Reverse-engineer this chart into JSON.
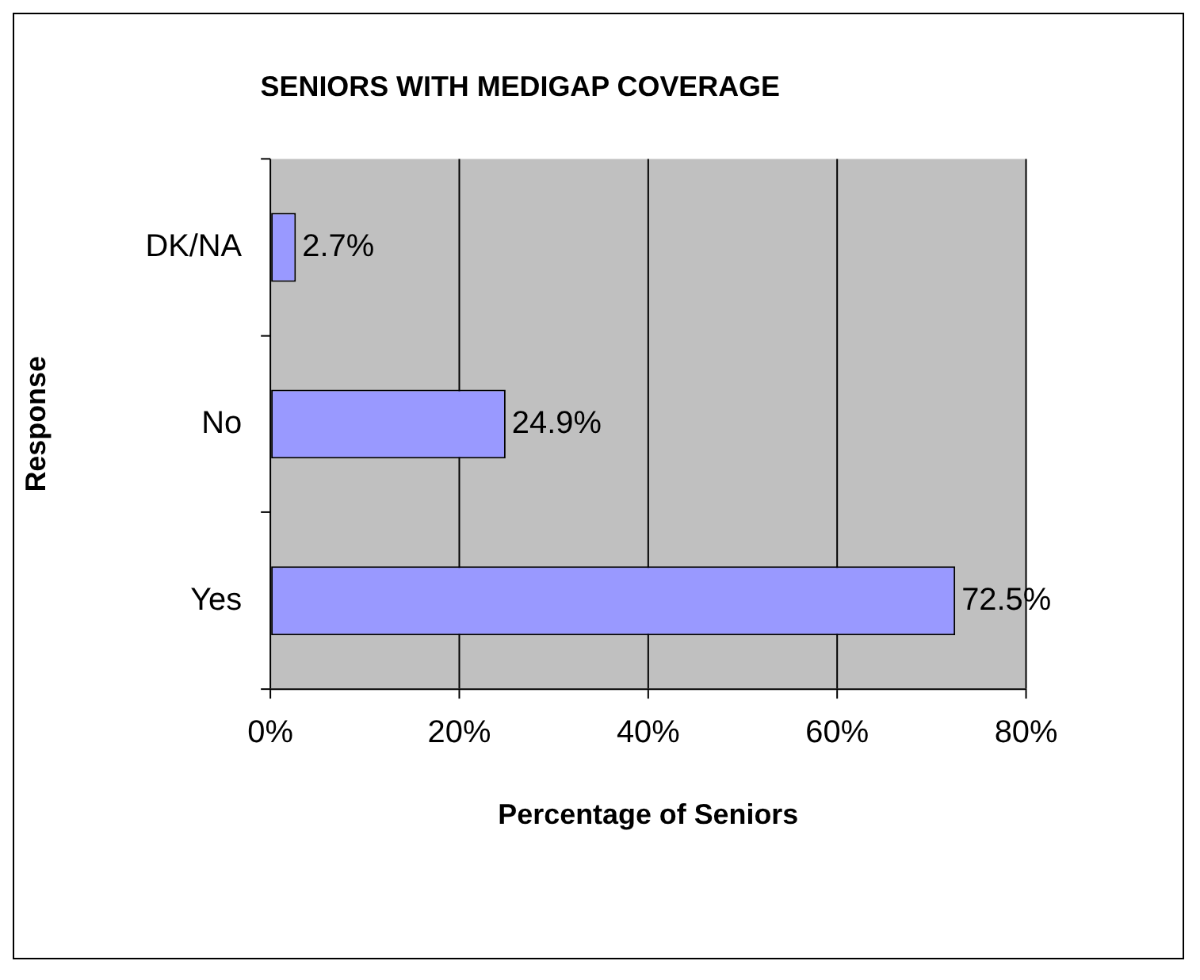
{
  "chart_data": {
    "type": "bar",
    "orientation": "horizontal",
    "title": "SENIORS WITH MEDIGAP COVERAGE",
    "xlabel": "Percentage of Seniors",
    "ylabel": "Response",
    "categories": [
      "DK/NA",
      "No",
      "Yes"
    ],
    "values": [
      2.7,
      24.9,
      72.5
    ],
    "color": "#9999ff",
    "value_labels": [
      "2.7%",
      "24.9%",
      "72.5%"
    ],
    "xlim": [
      0,
      80
    ],
    "xticks": [
      {
        "value": 0,
        "label": "0%"
      },
      {
        "value": 20,
        "label": "20%"
      },
      {
        "value": 40,
        "label": "40%"
      },
      {
        "value": 60,
        "label": "60%"
      },
      {
        "value": 80,
        "label": "80%"
      }
    ],
    "grid": "x",
    "legend": false
  }
}
